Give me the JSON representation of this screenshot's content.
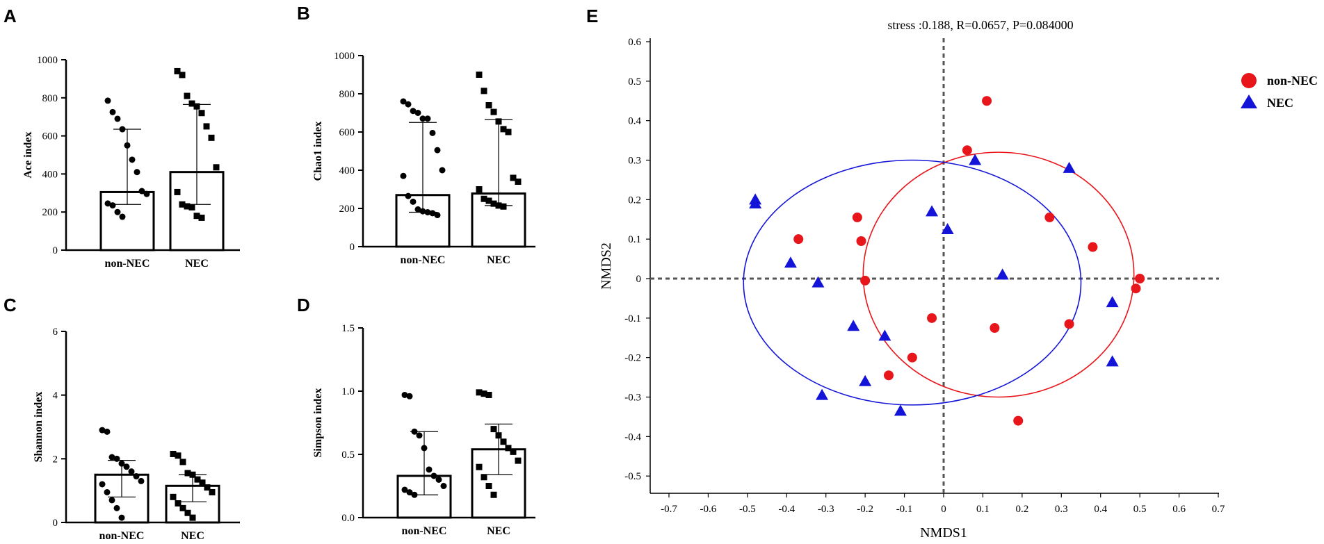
{
  "panel_labels": {
    "A": "A",
    "B": "B",
    "C": "C",
    "D": "D",
    "E": "E"
  },
  "colors": {
    "non_nec": "#e8151b",
    "nec": "#1414d9",
    "axis": "#000000",
    "ref_line": "#555555"
  },
  "chart_data": [
    {
      "id": "A",
      "type": "bar",
      "ylabel": "Ace index",
      "categories": [
        "non-NEC",
        "NEC"
      ],
      "ylim": [
        0,
        1000
      ],
      "yticks": [
        0,
        200,
        400,
        600,
        800,
        1000
      ],
      "means": [
        305,
        410
      ],
      "sd_upper": [
        635,
        765
      ],
      "sd_lower": [
        240,
        240
      ],
      "points": [
        [
          785,
          725,
          690,
          635,
          550,
          475,
          410,
          310,
          295,
          245,
          235,
          200,
          175
        ],
        [
          940,
          920,
          810,
          770,
          755,
          720,
          650,
          590,
          435,
          305,
          240,
          230,
          225,
          180,
          170
        ]
      ],
      "markers": [
        "circle",
        "square"
      ]
    },
    {
      "id": "B",
      "type": "bar",
      "ylabel": "Chao1 index",
      "categories": [
        "non-NEC",
        "NEC"
      ],
      "ylim": [
        0,
        1000
      ],
      "yticks": [
        0,
        200,
        400,
        600,
        800,
        1000
      ],
      "means": [
        270,
        278
      ],
      "sd_upper": [
        650,
        665
      ],
      "sd_lower": [
        180,
        215
      ],
      "points": [
        [
          760,
          745,
          710,
          700,
          670,
          670,
          595,
          505,
          400,
          370,
          265,
          235,
          195,
          185,
          180,
          175,
          165
        ],
        [
          900,
          815,
          740,
          705,
          655,
          615,
          600,
          360,
          340,
          300,
          250,
          240,
          225,
          215,
          210
        ]
      ],
      "markers": [
        "circle",
        "square"
      ]
    },
    {
      "id": "C",
      "type": "bar",
      "ylabel": "Shannon index",
      "categories": [
        "non-NEC",
        "NEC"
      ],
      "ylim": [
        0,
        6
      ],
      "yticks": [
        0,
        2,
        4,
        6
      ],
      "means": [
        1.5,
        1.15
      ],
      "sd_upper": [
        1.95,
        1.5
      ],
      "sd_lower": [
        0.8,
        0.65
      ],
      "points": [
        [
          2.9,
          2.85,
          2.05,
          2.0,
          1.85,
          1.75,
          1.6,
          1.45,
          1.3,
          1.2,
          0.95,
          0.7,
          0.45,
          0.15
        ],
        [
          2.15,
          2.1,
          1.9,
          1.55,
          1.5,
          1.35,
          1.25,
          1.1,
          0.95,
          0.8,
          0.6,
          0.45,
          0.3,
          0.15
        ]
      ],
      "markers": [
        "circle",
        "square"
      ]
    },
    {
      "id": "D",
      "type": "bar",
      "ylabel": "Simpson index",
      "categories": [
        "non-NEC",
        "NEC"
      ],
      "ylim": [
        0,
        1.5
      ],
      "yticks": [
        0.0,
        0.5,
        1.0,
        1.5
      ],
      "ytick_labels": [
        "0.0",
        "0.5",
        "1.0",
        "1.5"
      ],
      "means": [
        0.33,
        0.54
      ],
      "sd_upper": [
        0.68,
        0.74
      ],
      "sd_lower": [
        0.18,
        0.34
      ],
      "points": [
        [
          0.97,
          0.96,
          0.68,
          0.65,
          0.55,
          0.38,
          0.33,
          0.3,
          0.25,
          0.22,
          0.2,
          0.18
        ],
        [
          0.99,
          0.98,
          0.97,
          0.7,
          0.65,
          0.6,
          0.55,
          0.52,
          0.45,
          0.4,
          0.32,
          0.25,
          0.18
        ]
      ],
      "markers": [
        "circle",
        "square"
      ]
    },
    {
      "id": "E",
      "type": "scatter",
      "title": "stress :0.188, R=0.0657, P=0.084000",
      "xlabel": "NMDS1",
      "ylabel": "NMDS2",
      "xlim": [
        -0.75,
        0.7
      ],
      "ylim": [
        -0.55,
        0.6
      ],
      "xticks": [
        -0.7,
        -0.6,
        -0.5,
        -0.4,
        -0.3,
        -0.2,
        -0.1,
        0,
        0.1,
        0.2,
        0.3,
        0.4,
        0.5,
        0.6,
        0.7
      ],
      "yticks": [
        -0.5,
        -0.4,
        -0.3,
        -0.2,
        -0.1,
        0,
        0.1,
        0.2,
        0.3,
        0.4,
        0.5,
        0.6
      ],
      "series": [
        {
          "name": "non-NEC",
          "marker": "circle",
          "x": [
            0.11,
            0.06,
            -0.22,
            -0.37,
            -0.21,
            -0.2,
            0.27,
            0.38,
            0.5,
            0.49,
            -0.03,
            0.13,
            0.32,
            -0.08,
            -0.14,
            0.19
          ],
          "y": [
            0.45,
            0.325,
            0.155,
            0.1,
            0.095,
            -0.005,
            0.155,
            0.08,
            0.0,
            -0.025,
            -0.1,
            -0.125,
            -0.115,
            -0.2,
            -0.245,
            -0.36
          ]
        },
        {
          "name": "NEC",
          "marker": "triangle",
          "x": [
            -0.48,
            -0.48,
            -0.39,
            -0.32,
            0.08,
            0.32,
            -0.03,
            0.01,
            0.15,
            0.43,
            -0.23,
            -0.15,
            0.43,
            -0.2,
            -0.31,
            -0.11
          ],
          "y": [
            0.2,
            0.19,
            0.04,
            -0.01,
            0.3,
            0.28,
            0.17,
            0.125,
            0.01,
            -0.06,
            -0.12,
            -0.145,
            -0.21,
            -0.26,
            -0.295,
            -0.335
          ]
        }
      ],
      "ellipses": [
        {
          "group": "non-NEC",
          "cx": 0.14,
          "cy": 0.01,
          "rx": 0.345,
          "ry": 0.31
        },
        {
          "group": "NEC",
          "cx": -0.08,
          "cy": -0.01,
          "rx": 0.43,
          "ry": 0.31
        }
      ]
    }
  ]
}
